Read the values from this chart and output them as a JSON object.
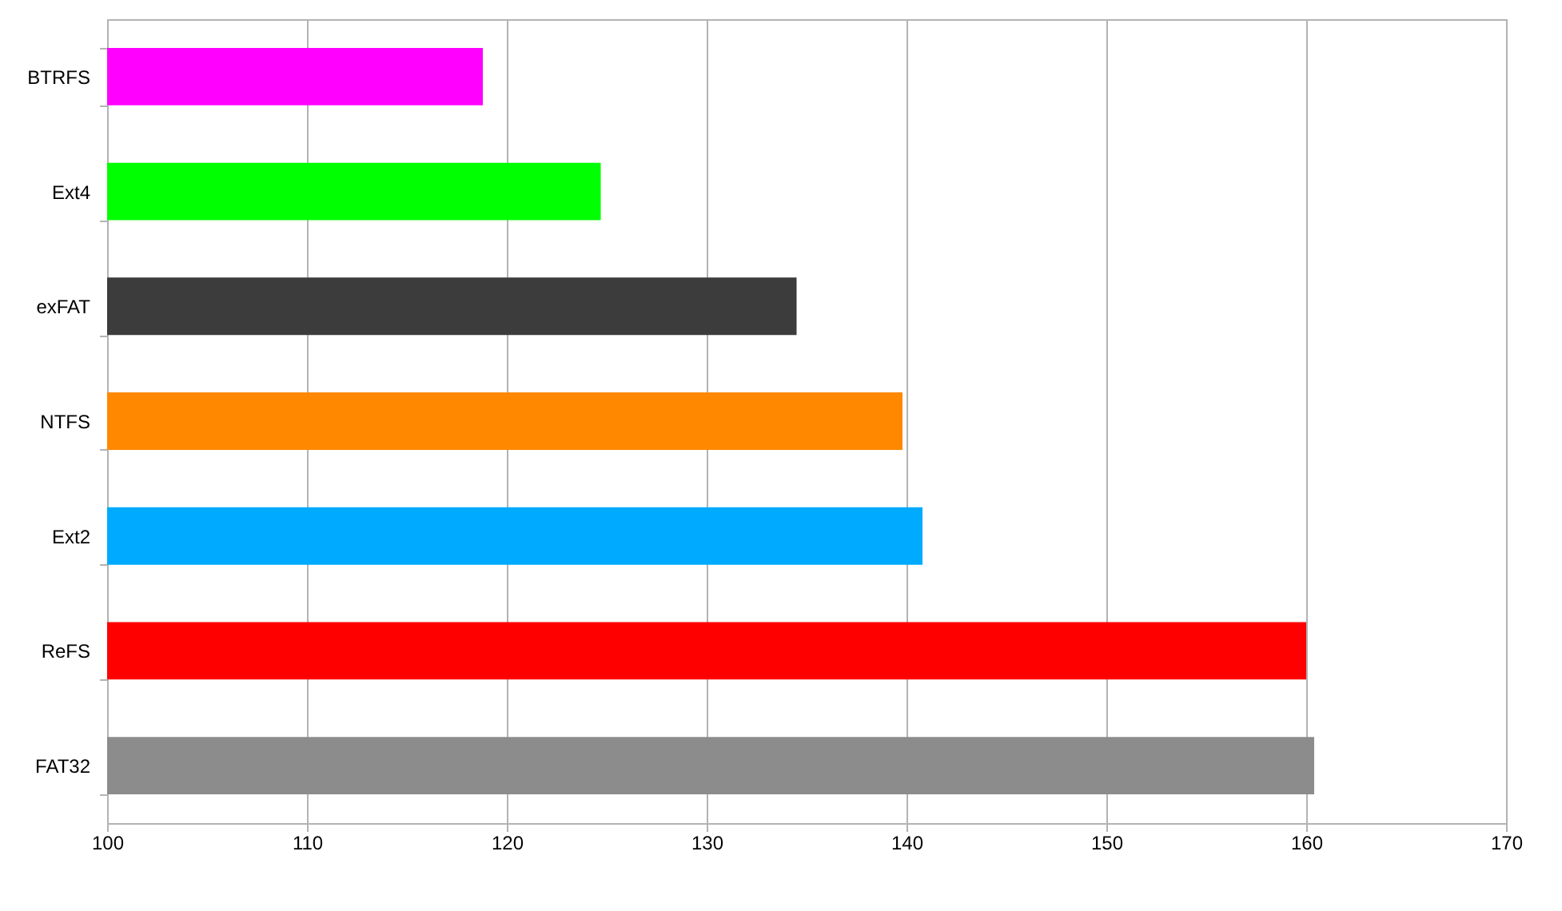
{
  "chart_data": {
    "type": "bar",
    "orientation": "horizontal",
    "categories": [
      "BTRFS",
      "Ext4",
      "exFAT",
      "NTFS",
      "Ext2",
      "ReFS",
      "FAT32"
    ],
    "values": [
      118.8,
      124.7,
      134.5,
      139.8,
      140.8,
      160.0,
      160.4
    ],
    "colors": [
      "#ff00ff",
      "#00ff00",
      "#3c3c3c",
      "#ff8800",
      "#00aaff",
      "#ff0000",
      "#8c8c8c"
    ],
    "xlim": [
      100,
      170
    ],
    "xticks": [
      100,
      110,
      120,
      130,
      140,
      150,
      160,
      170
    ],
    "grid": "x",
    "legend": false
  }
}
